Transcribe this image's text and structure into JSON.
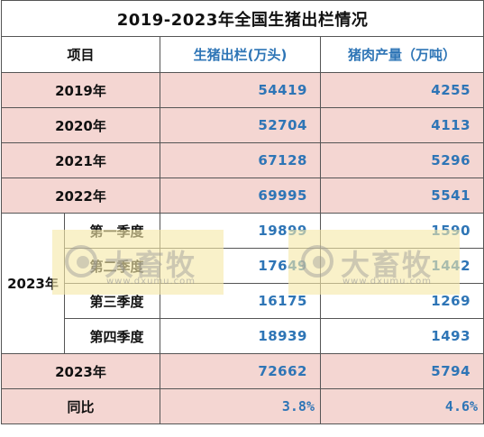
{
  "title": "2019-2023年全国生猪出栏情况",
  "header": {
    "item": "项目",
    "pig_output": "生猪出栏(万头)",
    "pork_production": "猪肉产量（万吨）"
  },
  "years": [
    {
      "label": "2019年",
      "pig_output": "54419",
      "pork": "4255"
    },
    {
      "label": "2020年",
      "pig_output": "52704",
      "pork": "4113"
    },
    {
      "label": "2021年",
      "pig_output": "67128",
      "pork": "5296"
    },
    {
      "label": "2022年",
      "pig_output": "69995",
      "pork": "5541"
    }
  ],
  "year_2023": {
    "label": "2023年",
    "quarters": [
      {
        "label": "第一季度",
        "pig_output": "19899",
        "pork": "1590"
      },
      {
        "label": "第二季度",
        "pig_output": "17649",
        "pork": "1442"
      },
      {
        "label": "第三季度",
        "pig_output": "16175",
        "pork": "1269"
      },
      {
        "label": "第四季度",
        "pig_output": "18939",
        "pork": "1493"
      }
    ]
  },
  "total_2023": {
    "label": "2023年",
    "pig_output": "72662",
    "pork": "5794"
  },
  "yoy": {
    "label": "同比",
    "pig_output": "3.8%",
    "pork": "4.6%"
  },
  "watermark": {
    "text": "大畜牧",
    "url": "www.dxumu.com"
  },
  "colors": {
    "pink_row": "#f4d6d2",
    "value_blue": "#2e75b6",
    "watermark_yellow": "#f6e8a8"
  }
}
